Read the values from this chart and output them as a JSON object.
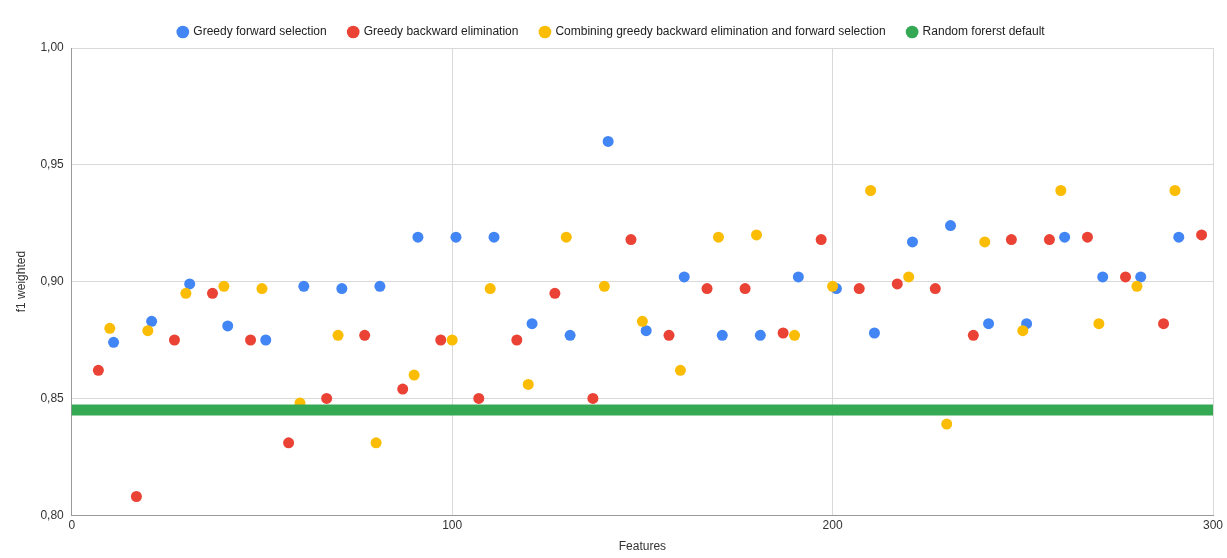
{
  "chart_data": {
    "type": "scatter",
    "xlabel": "Features",
    "ylabel": "f1 weighted",
    "xlim": [
      0,
      300
    ],
    "xticks": [
      0,
      100,
      200,
      300
    ],
    "ylim": [
      0.8,
      1.0
    ],
    "yticks": [
      {
        "value": 0.8,
        "label": "0,80"
      },
      {
        "value": 0.85,
        "label": "0,85"
      },
      {
        "value": 0.9,
        "label": "0,90"
      },
      {
        "value": 0.95,
        "label": "0,95"
      },
      {
        "value": 1.0,
        "label": "1,00"
      }
    ],
    "grid": true,
    "legend": "top",
    "marker": "circle",
    "series": [
      {
        "name": "Greedy forward selection",
        "color": "#4285f4",
        "x": [
          11,
          21,
          31,
          41,
          51,
          61,
          71,
          81,
          91,
          101,
          111,
          121,
          131,
          141,
          151,
          161,
          171,
          181,
          191,
          201,
          211,
          221,
          231,
          241,
          251,
          261,
          271,
          281,
          291
        ],
        "values": [
          0.874,
          0.883,
          0.899,
          0.881,
          0.875,
          0.898,
          0.897,
          0.898,
          0.919,
          0.919,
          0.919,
          0.882,
          0.877,
          0.96,
          0.879,
          0.902,
          0.877,
          0.877,
          0.902,
          0.897,
          0.878,
          0.917,
          0.924,
          0.882,
          0.882,
          0.919,
          0.902,
          0.902,
          0.919
        ]
      },
      {
        "name": "Greedy backward elimination",
        "color": "#ea4335",
        "x": [
          7,
          17,
          27,
          37,
          47,
          57,
          67,
          77,
          87,
          97,
          107,
          117,
          127,
          137,
          147,
          157,
          167,
          177,
          187,
          197,
          207,
          217,
          227,
          237,
          247,
          257,
          267,
          277,
          287,
          297
        ],
        "values": [
          0.862,
          0.808,
          0.875,
          0.895,
          0.875,
          0.831,
          0.85,
          0.877,
          0.854,
          0.875,
          0.85,
          0.875,
          0.895,
          0.85,
          0.918,
          0.877,
          0.897,
          0.897,
          0.878,
          0.918,
          0.897,
          0.899,
          0.897,
          0.877,
          0.918,
          0.918,
          0.919,
          0.902,
          0.882,
          0.92
        ]
      },
      {
        "name": "Combining greedy backward elimination and forward selection",
        "color": "#fbbc04",
        "x": [
          10,
          20,
          30,
          40,
          50,
          60,
          70,
          80,
          90,
          100,
          110,
          120,
          130,
          140,
          150,
          160,
          170,
          180,
          190,
          200,
          210,
          220,
          230,
          240,
          250,
          260,
          270,
          280,
          290
        ],
        "values": [
          0.88,
          0.879,
          0.895,
          0.898,
          0.897,
          0.848,
          0.877,
          0.831,
          0.86,
          0.875,
          0.897,
          0.856,
          0.919,
          0.898,
          0.883,
          0.862,
          0.919,
          0.92,
          0.877,
          0.898,
          0.939,
          0.902,
          0.839,
          0.917,
          0.879,
          0.939,
          0.882,
          0.898,
          0.939
        ]
      },
      {
        "name": "Random forerst default",
        "color": "#34a853",
        "type": "line",
        "marker": "none",
        "x": [
          0,
          300
        ],
        "values": [
          0.845,
          0.845
        ]
      }
    ]
  }
}
